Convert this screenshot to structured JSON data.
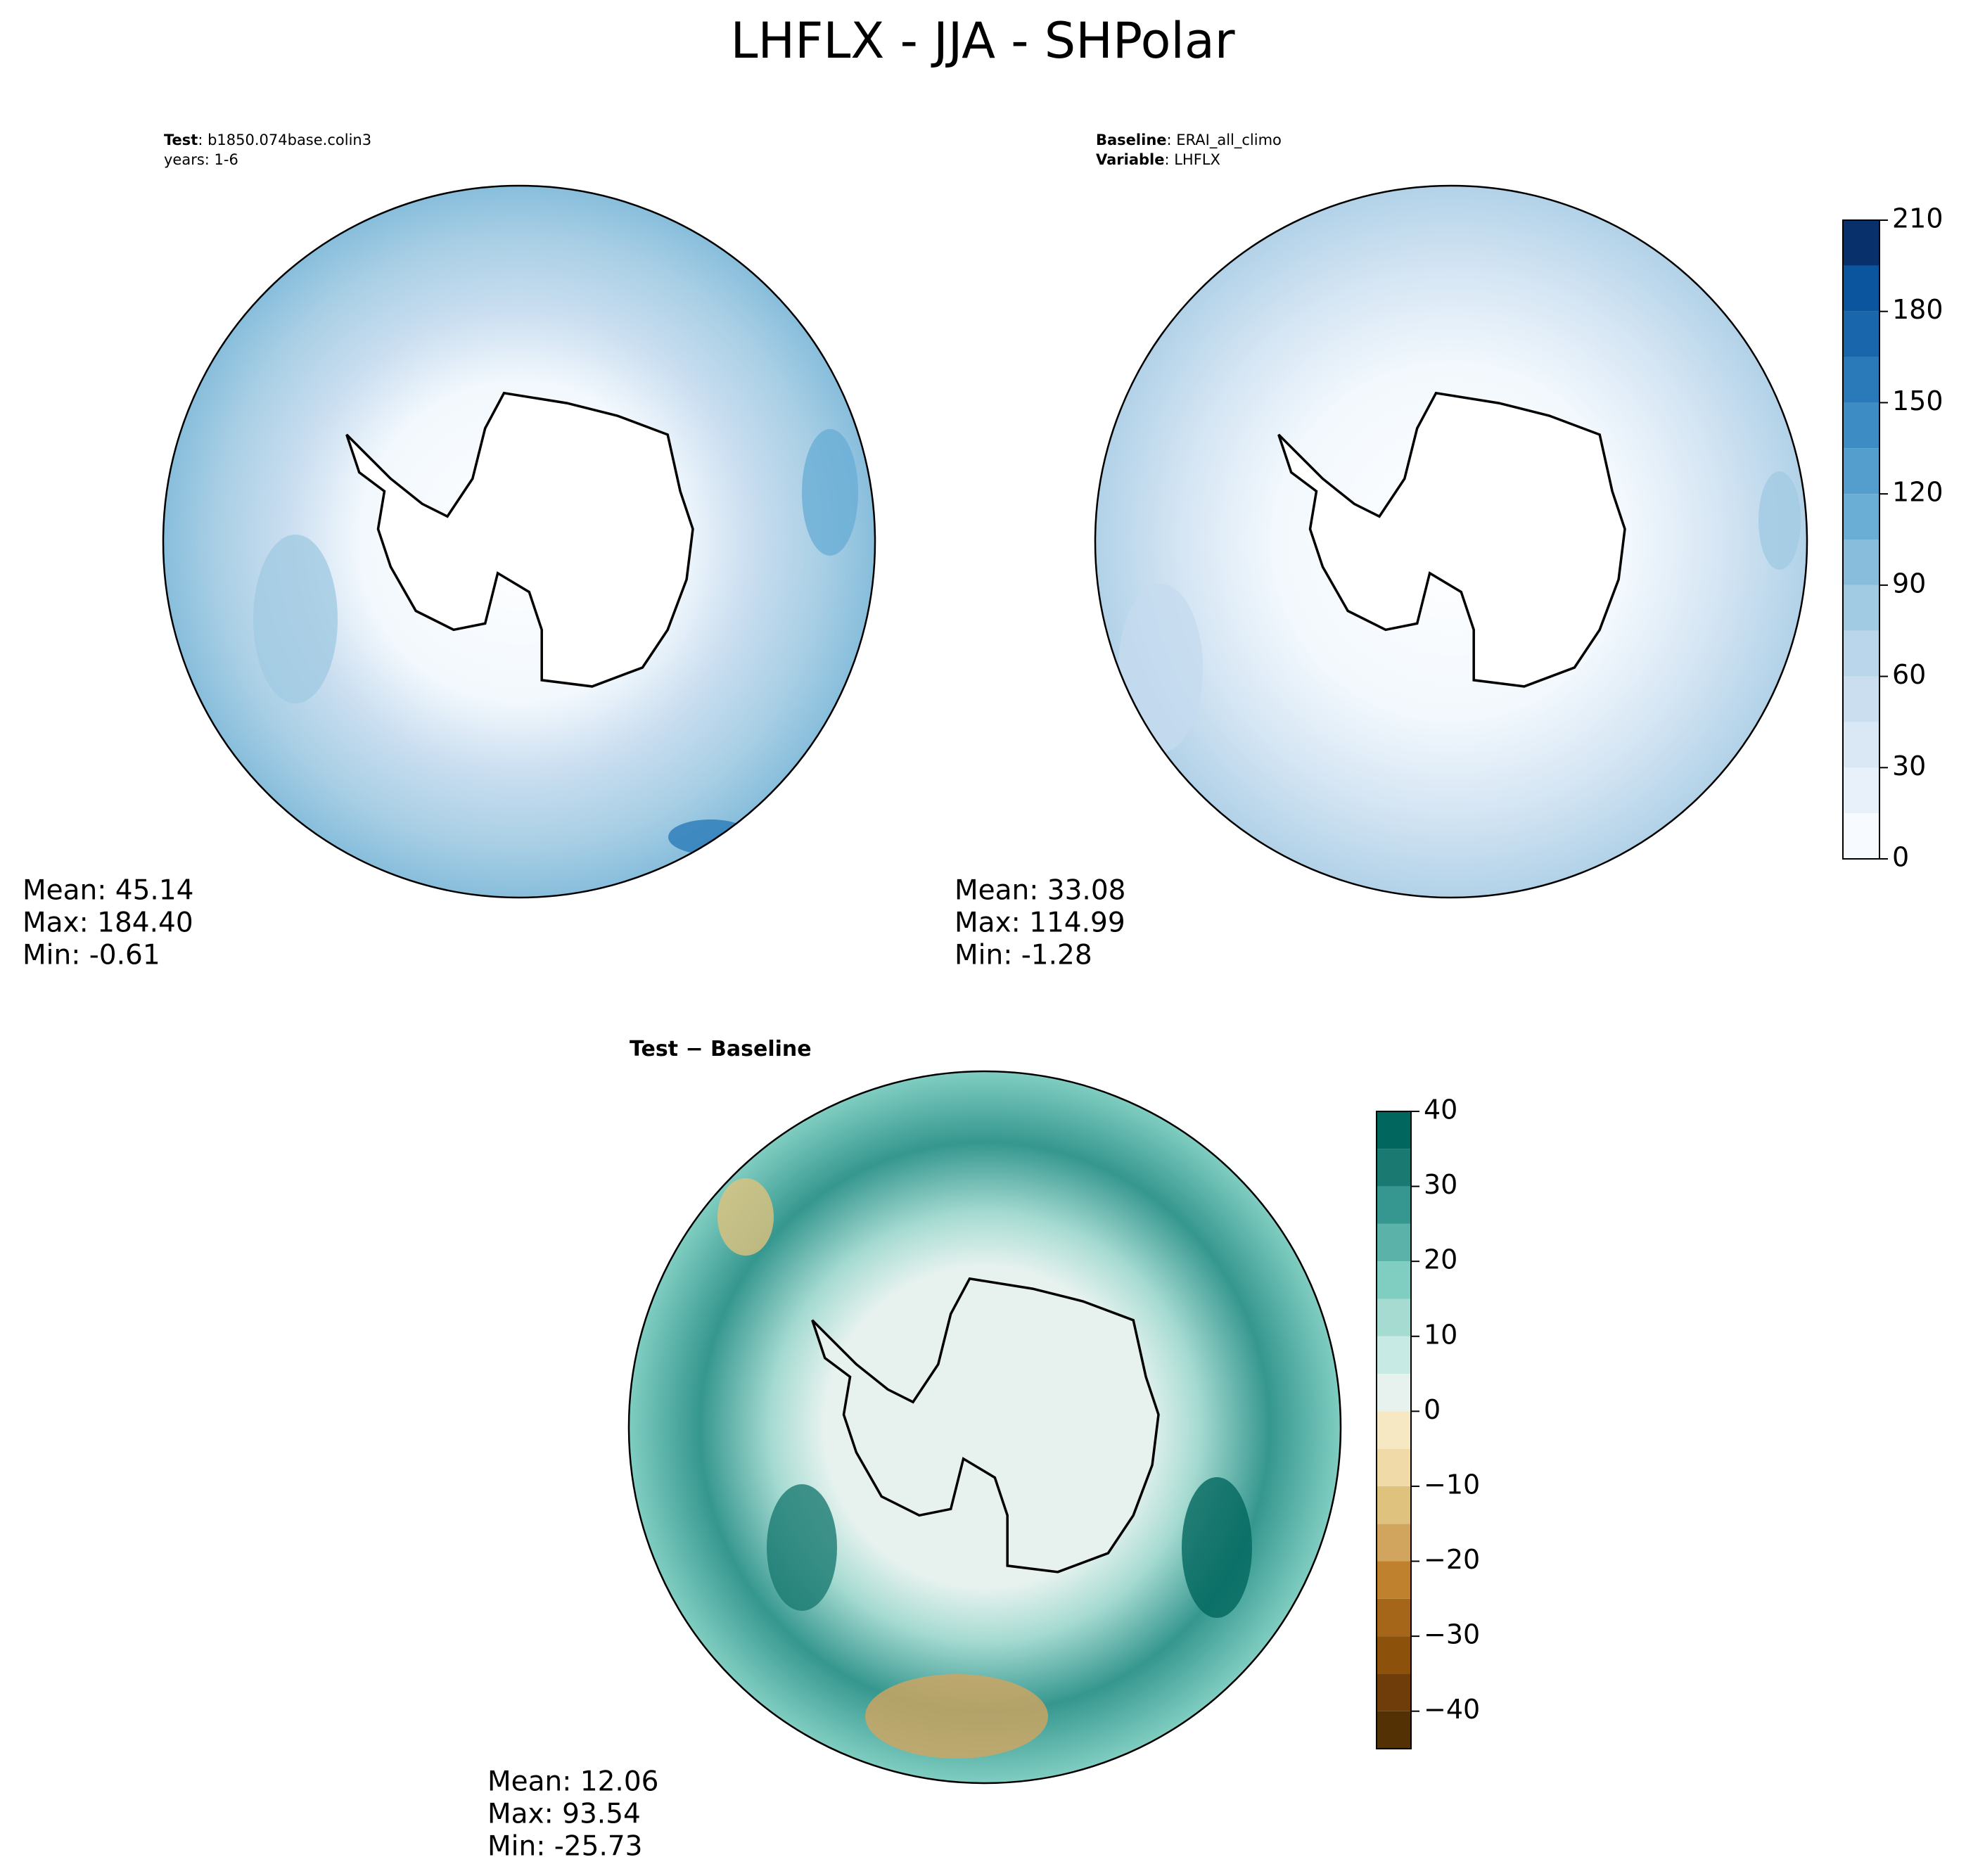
{
  "title": "LHFLX - JJA - SHPolar",
  "panels": [
    {
      "header": [
        {
          "key": "Test",
          "value": ": b1850.074base.colin3"
        },
        {
          "value": "years: 1-6"
        }
      ],
      "stats": [
        "Mean: 45.14",
        "Max: 184.40",
        "Min: -0.61"
      ]
    },
    {
      "header": [
        {
          "key": "Baseline",
          "value": ": ERAI_all_climo"
        },
        {
          "key": "Variable",
          "value": ": LHFLX"
        }
      ],
      "stats": [
        "Mean: 33.08",
        "Max: 114.99",
        "Min: -1.28"
      ]
    },
    {
      "header": [
        {
          "key": "Test − Baseline"
        }
      ],
      "stats": [
        "Mean: 12.06",
        "Max: 93.54",
        "Min: -25.73"
      ]
    }
  ],
  "colorbars": [
    {
      "lim": [
        0,
        210
      ],
      "levels": [
        0,
        15,
        30,
        45,
        60,
        75,
        90,
        105,
        120,
        135,
        150,
        165,
        180,
        195,
        210
      ],
      "colors": [
        "#f7fbff",
        "#e8f1fa",
        "#dae8f5",
        "#cadef0",
        "#b9d6ea",
        "#a1cbe2",
        "#88bedc",
        "#6aaed6",
        "#539ecd",
        "#3d8dc4",
        "#2a7ab9",
        "#1966ad",
        "#0b559f",
        "#08306b"
      ],
      "ticks": [
        0,
        30,
        60,
        90,
        120,
        150,
        180,
        210
      ]
    },
    {
      "lim": [
        -45,
        40
      ],
      "levels": [
        -45,
        -40,
        -35,
        -30,
        -25,
        -20,
        -15,
        -10,
        -5,
        0,
        5,
        10,
        15,
        20,
        25,
        30,
        35,
        40
      ],
      "colors": [
        "#543005",
        "#6f3d0a",
        "#8c510a",
        "#a6661a",
        "#bf812d",
        "#d2a55f",
        "#dfc27d",
        "#f0dba8",
        "#f6e8c3",
        "#e7f2ef",
        "#c7eae5",
        "#a6dbd2",
        "#80cdc1",
        "#5ab2a8",
        "#35978f",
        "#1a7a72",
        "#01665e"
      ],
      "ticks": [
        {
          "value": -40,
          "label": "−40"
        },
        {
          "value": -30,
          "label": "−30"
        },
        {
          "value": -20,
          "label": "−20"
        },
        {
          "value": -10,
          "label": "−10"
        },
        0,
        10,
        20,
        30,
        40
      ]
    }
  ]
}
